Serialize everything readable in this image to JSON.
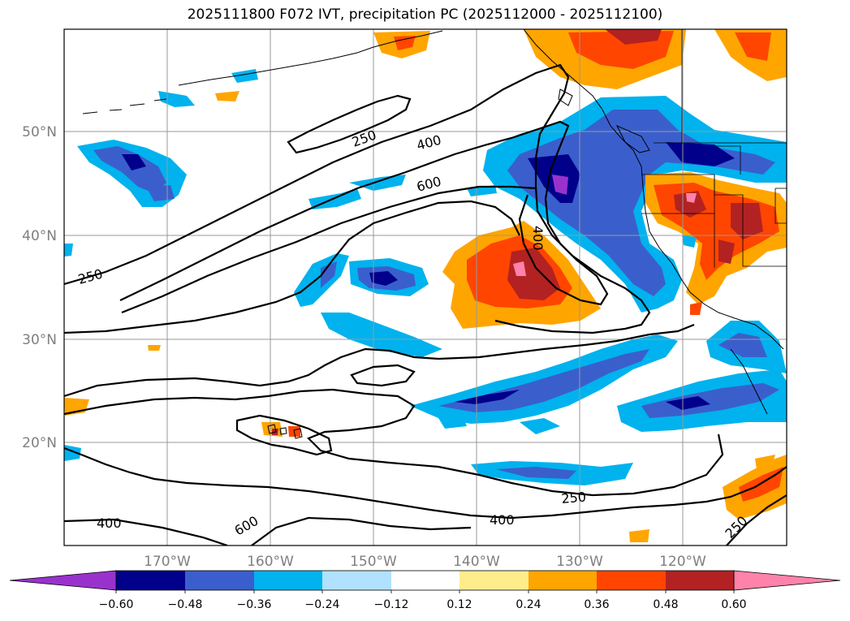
{
  "title": "2025111800 F072 IVT, precipitation PC (2025112000 - 2025112100)",
  "lat_labels": [
    "50°N",
    "40°N",
    "30°N",
    "20°N"
  ],
  "lon_labels": [
    "170°W",
    "160°W",
    "150°W",
    "140°W",
    "130°W",
    "120°W"
  ],
  "contour_labels": [
    "250",
    "400",
    "600",
    "250",
    "400",
    "250",
    "600",
    "400",
    "250"
  ],
  "colorbar": {
    "ticks": [
      "−0.60",
      "−0.48",
      "−0.36",
      "−0.24",
      "−0.12",
      "0.12",
      "0.24",
      "0.36",
      "0.48",
      "0.60"
    ],
    "colors": [
      "#9932cc",
      "#00008b",
      "#3a5fcd",
      "#00b2ee",
      "#b0e2ff",
      "#ffffff",
      "#ffec8b",
      "#ffa500",
      "#ff4500",
      "#b22222",
      "#ff82ab"
    ]
  },
  "colors": {
    "contour": "#000000",
    "grid": "#999999",
    "axis_label": "#7f7f7f"
  }
}
